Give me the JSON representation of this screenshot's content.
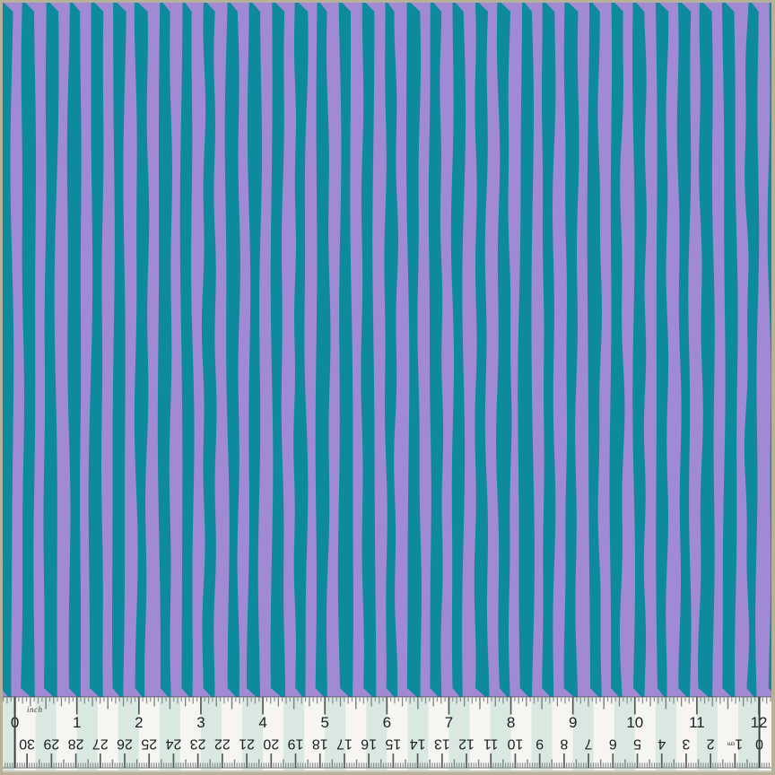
{
  "photo": {
    "border_color": "#b8b199"
  },
  "fabric": {
    "background_color": "#a189d3",
    "stripe_color": "#0d8a9c",
    "stripe_count": 35
  },
  "ruler": {
    "background_color": "#f7f5f1",
    "band_color": "#d9e9e2",
    "number_color": "#1c1f20",
    "tick_color_minor": "#8a9091",
    "tick_color_mid": "#7c8283",
    "tick_color_major": "#555a5b",
    "zero_line_color": "#3b4041",
    "inch_scale": {
      "unit": "inch",
      "labels": [
        "0",
        "1",
        "2",
        "3",
        "4",
        "5",
        "6",
        "7",
        "8",
        "9",
        "10",
        "11",
        "12"
      ]
    },
    "cm_scale": {
      "unit": "cm",
      "labels": [
        "30",
        "29",
        "28",
        "27",
        "26",
        "25",
        "24",
        "23",
        "22",
        "21",
        "20",
        "19",
        "18",
        "17",
        "16",
        "15",
        "14",
        "13",
        "12",
        "11",
        "10",
        "9",
        "8",
        "7",
        "6",
        "5",
        "4",
        "3",
        "2",
        "1",
        "0"
      ]
    }
  }
}
